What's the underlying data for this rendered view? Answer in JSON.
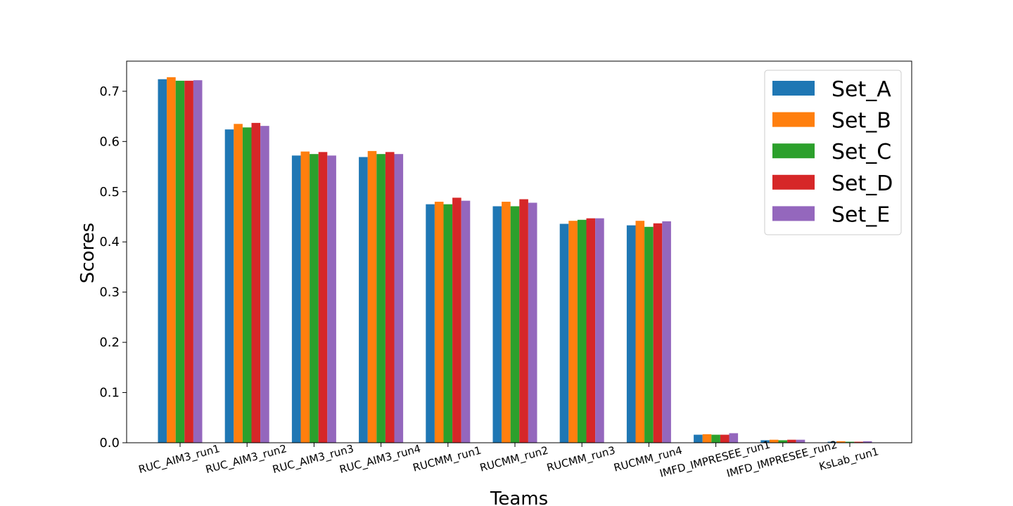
{
  "chart_data": {
    "type": "bar",
    "title": "",
    "xlabel": "Teams",
    "ylabel": "Scores",
    "ylim": [
      0,
      0.76
    ],
    "yticks": [
      "0.0",
      "0.1",
      "0.2",
      "0.3",
      "0.4",
      "0.5",
      "0.6",
      "0.7"
    ],
    "categories": [
      "RUC_AIM3_run1",
      "RUC_AIM3_run2",
      "RUC_AIM3_run3",
      "RUC_AIM3_run4",
      "RUCMM_run1",
      "RUCMM_run2",
      "RUCMM_run3",
      "RUCMM_run4",
      "IMFD_IMPRESEE_run1",
      "IMFD_IMPRESEE_run2",
      "KsLab_run1"
    ],
    "legend_position": "top-right",
    "grid": false,
    "series": [
      {
        "name": "Set_A",
        "color": "#1f77b4",
        "values": [
          0.724,
          0.624,
          0.572,
          0.569,
          0.475,
          0.471,
          0.436,
          0.433,
          0.016,
          0.005,
          0.002
        ]
      },
      {
        "name": "Set_B",
        "color": "#ff7f0e",
        "values": [
          0.728,
          0.635,
          0.58,
          0.581,
          0.48,
          0.48,
          0.442,
          0.442,
          0.017,
          0.006,
          0.003
        ]
      },
      {
        "name": "Set_C",
        "color": "#2ca02c",
        "values": [
          0.721,
          0.628,
          0.575,
          0.575,
          0.475,
          0.471,
          0.444,
          0.43,
          0.016,
          0.005,
          0.002
        ]
      },
      {
        "name": "Set_D",
        "color": "#d62728",
        "values": [
          0.721,
          0.637,
          0.579,
          0.579,
          0.488,
          0.485,
          0.447,
          0.437,
          0.016,
          0.006,
          0.002
        ]
      },
      {
        "name": "Set_E",
        "color": "#9467bd",
        "values": [
          0.722,
          0.631,
          0.572,
          0.575,
          0.482,
          0.478,
          0.447,
          0.441,
          0.019,
          0.006,
          0.003
        ]
      }
    ]
  }
}
